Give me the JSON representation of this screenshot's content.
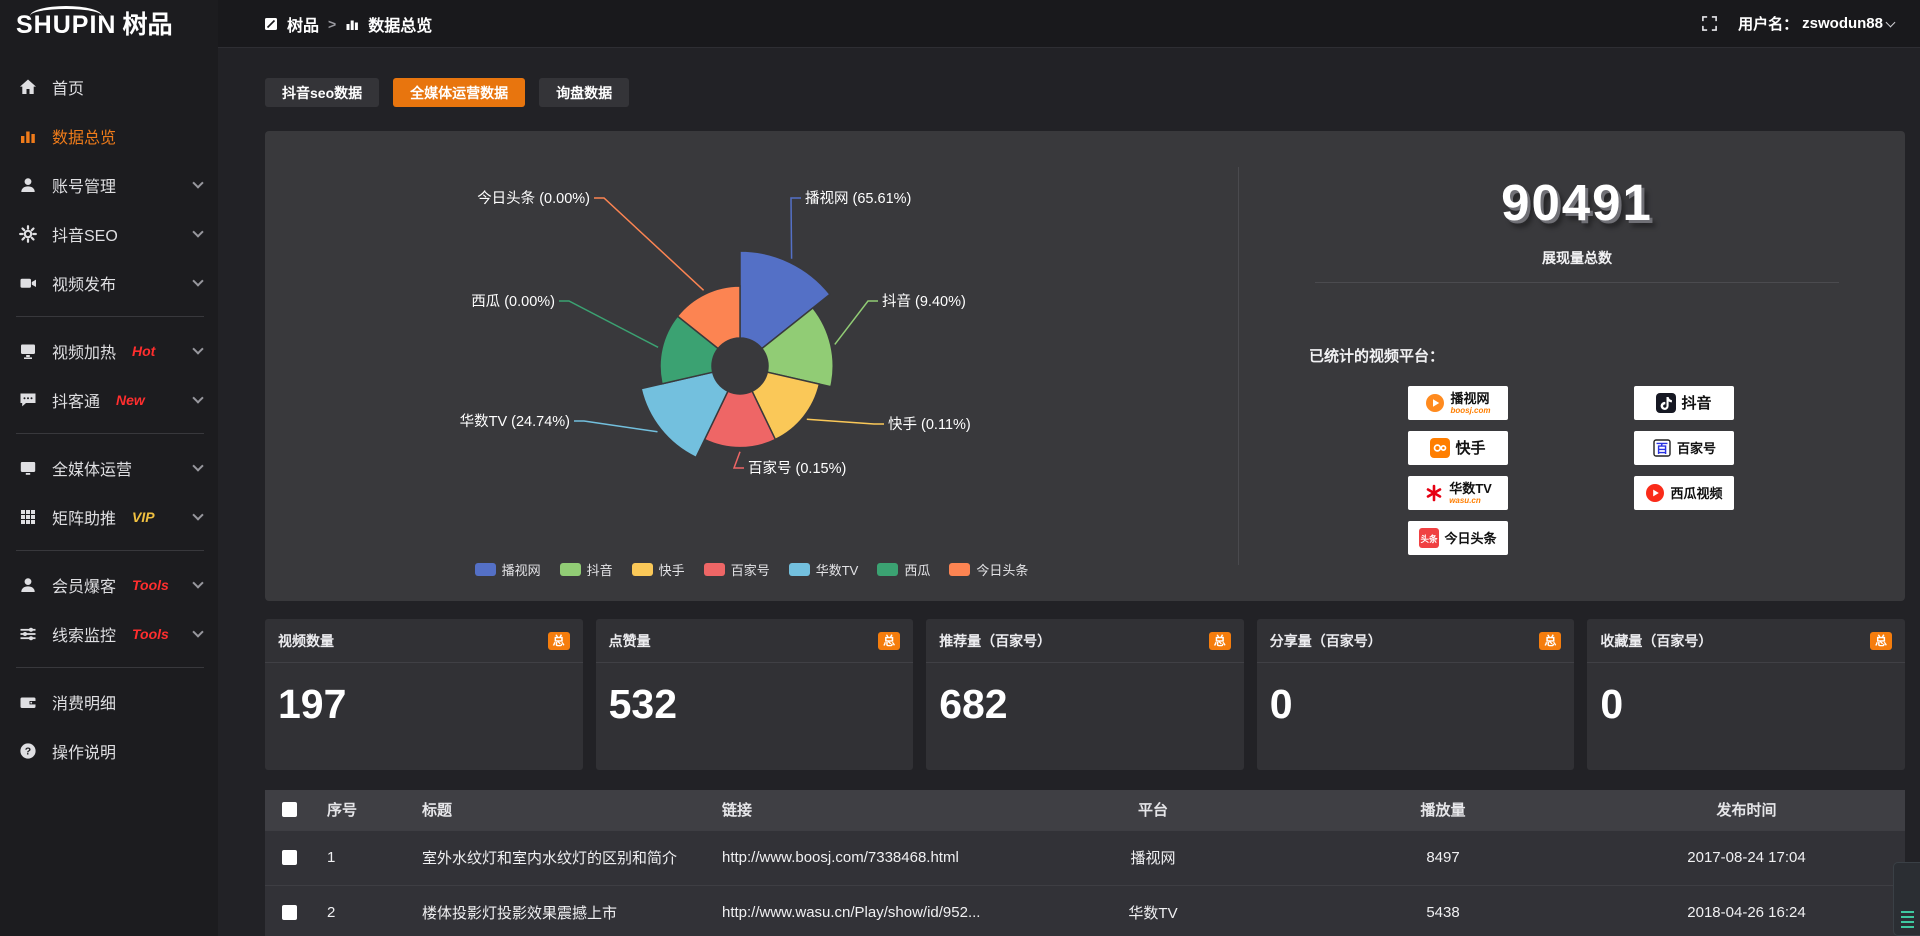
{
  "brand": {
    "name": "SHUPIN",
    "name_cn": "树品"
  },
  "topbar": {
    "breadcrumb": [
      {
        "label": "树品"
      },
      {
        "label": "数据总览"
      }
    ],
    "separator": ">",
    "user_label": "用户名：",
    "username": "zswodun88"
  },
  "sidebar": {
    "items": [
      {
        "label": "首页",
        "badge": "",
        "chevron": false,
        "active": false
      },
      {
        "label": "数据总览",
        "badge": "",
        "chevron": false,
        "active": true
      },
      {
        "label": "账号管理",
        "badge": "",
        "chevron": true,
        "active": false
      },
      {
        "label": "抖音SEO",
        "badge": "",
        "chevron": true,
        "active": false
      },
      {
        "label": "视频发布",
        "badge": "",
        "chevron": true,
        "active": false
      },
      {
        "label": "视频加热",
        "badge": "Hot",
        "badge_color": "#ff2e2e",
        "chevron": true,
        "active": false
      },
      {
        "label": "抖客通",
        "badge": "New",
        "badge_color": "#ff2e2e",
        "chevron": true,
        "active": false
      },
      {
        "label": "全媒体运营",
        "badge": "",
        "chevron": true,
        "active": false
      },
      {
        "label": "矩阵助推",
        "badge": "VIP",
        "badge_color": "#f0c040",
        "chevron": true,
        "active": false
      },
      {
        "label": "会员爆客",
        "badge": "Tools",
        "badge_color": "#ff2e2e",
        "chevron": true,
        "active": false
      },
      {
        "label": "线索监控",
        "badge": "Tools",
        "badge_color": "#ff2e2e",
        "chevron": true,
        "active": false
      },
      {
        "label": "消费明细",
        "badge": "",
        "chevron": false,
        "active": false
      },
      {
        "label": "操作说明",
        "badge": "",
        "chevron": false,
        "active": false
      }
    ]
  },
  "tabs": [
    {
      "label": "抖音seo数据",
      "active": false
    },
    {
      "label": "全媒体运营数据",
      "active": true
    },
    {
      "label": "询盘数据",
      "active": false
    }
  ],
  "chart_data": {
    "type": "pie",
    "variant": "nightingale-rose-donut",
    "unit": "%",
    "legend_position": "bottom",
    "label_format": "{name} ({pct})",
    "series": [
      {
        "name": "播视网",
        "value": 65.61,
        "pct_label": "65.61%",
        "color": "#5470c6"
      },
      {
        "name": "抖音",
        "value": 9.4,
        "pct_label": "9.40%",
        "color": "#91cc75"
      },
      {
        "name": "快手",
        "value": 0.11,
        "pct_label": "0.11%",
        "color": "#fac858"
      },
      {
        "name": "百家号",
        "value": 0.15,
        "pct_label": "0.15%",
        "color": "#ee6666"
      },
      {
        "name": "华数TV",
        "value": 24.74,
        "pct_label": "24.74%",
        "color": "#73c0de"
      },
      {
        "name": "西瓜",
        "value": 0.0,
        "pct_label": "0.00%",
        "color": "#3ba272"
      },
      {
        "name": "今日头条",
        "value": 0.0,
        "pct_label": "0.00%",
        "color": "#fc8452"
      }
    ]
  },
  "summary": {
    "total": "90491",
    "total_label": "展现量总数",
    "platforms_label": "已统计的视频平台：",
    "platforms": [
      {
        "name": "播视网",
        "sub": "boosj.com"
      },
      {
        "name": "抖音",
        "sub": ""
      },
      {
        "name": "快手",
        "sub": ""
      },
      {
        "name": "百家号",
        "sub": ""
      },
      {
        "name": "华数TV",
        "sub": "wasu.cn"
      },
      {
        "name": "西瓜视频",
        "sub": ""
      },
      {
        "name": "今日头条",
        "sub": ""
      }
    ]
  },
  "cards": [
    {
      "title": "视频数量",
      "badge": "总",
      "value": "197"
    },
    {
      "title": "点赞量",
      "badge": "总",
      "value": "532"
    },
    {
      "title": "推荐量（百家号）",
      "badge": "总",
      "value": "682"
    },
    {
      "title": "分享量（百家号）",
      "badge": "总",
      "value": "0"
    },
    {
      "title": "收藏量（百家号）",
      "badge": "总",
      "value": "0"
    }
  ],
  "table": {
    "columns": [
      "序号",
      "标题",
      "链接",
      "平台",
      "播放量",
      "发布时间"
    ],
    "rows": [
      {
        "index": "1",
        "title": "室外水纹灯和室内水纹灯的区别和简介",
        "link": "http://www.boosj.com/7338468.html",
        "platform": "播视网",
        "views": "8497",
        "time": "2017-08-24 17:04"
      },
      {
        "index": "2",
        "title": "楼体投影灯投影效果震撼上市",
        "link": "http://www.wasu.cn/Play/show/id/952...",
        "platform": "华数TV",
        "views": "5438",
        "time": "2018-04-26 16:24"
      }
    ]
  },
  "colors": {
    "accent_orange": "#e8750e",
    "badge_orange": "#f57d0d",
    "hot_red": "#ff2e2e",
    "vip_gold": "#f0c040",
    "link_orange": "#ee8133"
  }
}
